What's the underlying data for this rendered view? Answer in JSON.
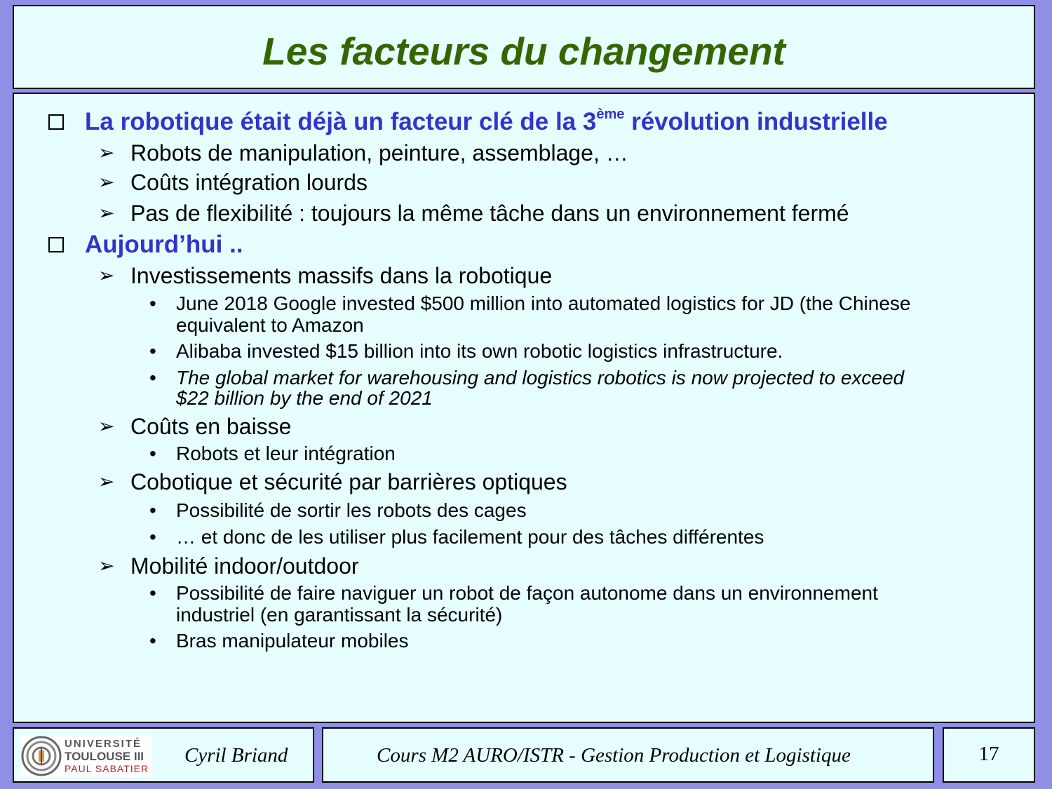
{
  "slide": {
    "title": "Les facteurs du changement"
  },
  "content": {
    "section1": {
      "heading_before": "La robotique était déjà un facteur clé de la 3",
      "heading_sup": "ème",
      "heading_after": " révolution industrielle",
      "items": [
        "Robots de manipulation, peinture, assemblage, …",
        "Coûts intégration lourds",
        "Pas de flexibilité : toujours la même tâche dans un environnement fermé"
      ]
    },
    "section2": {
      "heading": "Aujourd’hui ..",
      "investments": {
        "label": "Investissements massifs dans la robotique",
        "bullets": [
          "June 2018 Google invested $500 million into automated logistics for JD (the Chinese",
          "equivalent to Amazon",
          "Alibaba invested $15 billion into its own robotic logistics infrastructure.",
          "The global market for warehousing and logistics robotics is now projected to exceed",
          "$22 billion by the end of 2021"
        ]
      },
      "costs": {
        "label": "Coûts en baisse",
        "bullets": [
          "Robots et leur intégration"
        ]
      },
      "cobotics": {
        "label": "Cobotique et sécurité par barrières optiques",
        "bullets": [
          "Possibilité de sortir les robots des cages",
          "… et donc de les utiliser plus facilement pour des tâches différentes"
        ]
      },
      "mobility": {
        "label": "Mobilité indoor/outdoor",
        "bullets": [
          "Possibilité de faire naviguer un robot de façon autonome dans un environnement",
          "industriel (en garantissant la sécurité)",
          "Bras manipulateur mobiles"
        ]
      }
    }
  },
  "footer": {
    "logo": {
      "line1": "UNIVERSITÉ",
      "line2": "TOULOUSE III",
      "line3": "PAUL SABATIER"
    },
    "author": "Cyril Briand",
    "course": "Cours M2 AURO/ISTR - Gestion Production et Logistique",
    "page_number": "17"
  },
  "colors": {
    "background": "#8f8fe6",
    "panel": "#e6fffe",
    "title": "#336600",
    "heading": "#3333cc"
  },
  "icons": {
    "heading_marker": "empty-square-icon",
    "item_marker": "arrow-head-icon",
    "sub_marker": "bullet-dot-icon"
  }
}
